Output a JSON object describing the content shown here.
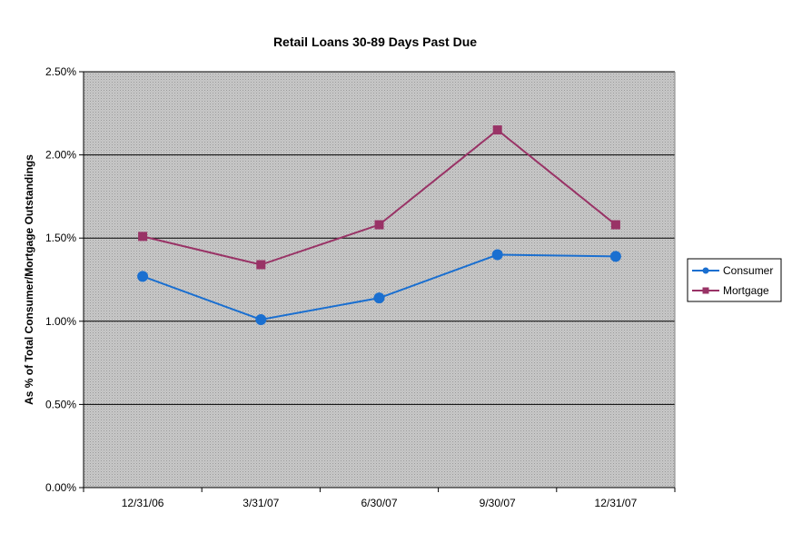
{
  "chart_data": {
    "type": "line",
    "title": "Retail Loans 30-89 Days Past Due",
    "xlabel": "",
    "ylabel": "As % of Total Consumer/Mortgage Outstandings",
    "categories": [
      "12/31/06",
      "3/31/07",
      "6/30/07",
      "9/30/07",
      "12/31/07"
    ],
    "ylim": [
      0,
      2.5
    ],
    "yticks": [
      "0.00%",
      "0.50%",
      "1.00%",
      "1.50%",
      "2.00%",
      "2.50%"
    ],
    "grid": true,
    "legend_position": "right",
    "series": [
      {
        "name": "Consumer",
        "color": "#1a6fd0",
        "marker": "circle",
        "values": [
          1.27,
          1.01,
          1.14,
          1.4,
          1.39
        ]
      },
      {
        "name": "Mortgage",
        "color": "#993366",
        "marker": "square",
        "values": [
          1.51,
          1.34,
          1.58,
          2.15,
          1.58
        ]
      }
    ]
  }
}
